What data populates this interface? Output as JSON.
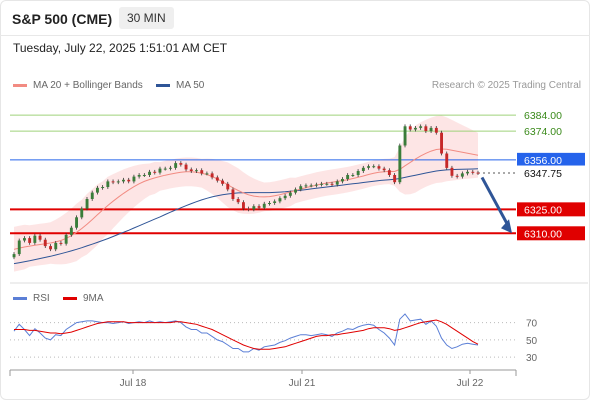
{
  "header": {
    "title": "S&P 500 (CME)",
    "timeframe": "30 MIN",
    "datetime": "Tuesday, July 22, 2025 1:51:01 AM CET"
  },
  "legend": {
    "ma20_label": "MA 20 + Bollinger Bands",
    "ma50_label": "MA 50",
    "credit": "Research © 2025 Trading Central",
    "rsi_label": "RSI",
    "ma9_label": "9MA"
  },
  "colors": {
    "ma20": "#f28b82",
    "ma50": "#2f5597",
    "band_fill": "#fde0e0",
    "resistance_green": "#9fd27a",
    "pivot_blue": "#2563eb",
    "support_red": "#e00000",
    "candle_up": "#3a7d3a",
    "candle_down": "#c62828",
    "rsi": "#5b7fd6",
    "rsi_ma": "#e00000",
    "arrow": "#2f5597"
  },
  "chart_data": {
    "type": "candlestick",
    "timeframe": "30 MIN",
    "instrument": "S&P 500 (CME)",
    "x_ticks": [
      "Jul 18",
      "Jul 21",
      "Jul 22"
    ],
    "y_range": [
      6282,
      6396
    ],
    "levels": [
      {
        "value": 6384.0,
        "label": "6384.00",
        "kind": "resistance"
      },
      {
        "value": 6374.0,
        "label": "6374.00",
        "kind": "resistance"
      },
      {
        "value": 6356.0,
        "label": "6356.00",
        "kind": "pivot"
      },
      {
        "value": 6347.75,
        "label": "6347.75",
        "kind": "last_price"
      },
      {
        "value": 6325.0,
        "label": "6325.00",
        "kind": "support"
      },
      {
        "value": 6310.0,
        "label": "6310.00",
        "kind": "support"
      }
    ],
    "close": [
      6297.0,
      6305.5,
      6307.0,
      6304.0,
      6308.5,
      6306.0,
      6302.0,
      6300.0,
      6304.0,
      6303.5,
      6309.0,
      6313.5,
      6320.0,
      6325.5,
      6331.5,
      6335.5,
      6338.5,
      6339.0,
      6342.5,
      6342.0,
      6342.5,
      6343.5,
      6342.5,
      6345.5,
      6346.5,
      6346.5,
      6348.5,
      6348.0,
      6350.5,
      6350.5,
      6351.0,
      6354.0,
      6353.0,
      6350.0,
      6349.0,
      6349.5,
      6347.5,
      6347.5,
      6345.0,
      6343.0,
      6341.0,
      6337.5,
      6331.5,
      6329.5,
      6325.5,
      6325.0,
      6327.0,
      6326.0,
      6328.5,
      6329.0,
      6330.0,
      6332.0,
      6333.5,
      6335.5,
      6337.5,
      6339.5,
      6340.0,
      6340.0,
      6340.5,
      6341.0,
      6341.0,
      6340.5,
      6342.5,
      6344.0,
      6346.5,
      6346.5,
      6349.0,
      6351.0,
      6352.0,
      6352.0,
      6350.5,
      6349.5,
      6346.5,
      6342.0,
      6365.0,
      6377.0,
      6375.0,
      6376.0,
      6377.0,
      6374.0,
      6376.0,
      6373.0,
      6360.0,
      6351.0,
      6346.0,
      6345.5,
      6347.5,
      6348.5,
      6348.0,
      6347.75
    ],
    "ma20": [
      6300.0,
      6300.7,
      6301.4,
      6302.0,
      6302.5,
      6303.0,
      6303.4,
      6303.9,
      6304.6,
      6305.5,
      6306.8,
      6308.5,
      6310.6,
      6313.0,
      6315.7,
      6318.6,
      6321.6,
      6324.5,
      6327.4,
      6330.1,
      6332.6,
      6335.0,
      6337.2,
      6339.2,
      6341.0,
      6342.5,
      6343.7,
      6344.7,
      6345.6,
      6346.4,
      6347.1,
      6347.7,
      6348.2,
      6348.5,
      6348.5,
      6348.2,
      6347.6,
      6346.8,
      6345.6,
      6344.1,
      6342.3,
      6340.4,
      6338.5,
      6336.8,
      6335.3,
      6334.1,
      6333.3,
      6332.9,
      6332.8,
      6333.0,
      6333.5,
      6334.2,
      6335.0,
      6335.9,
      6336.8,
      6337.7,
      6338.6,
      6339.4,
      6340.2,
      6340.9,
      6341.5,
      6342.0,
      6342.5,
      6343.0,
      6343.6,
      6344.3,
      6345.1,
      6345.9,
      6346.8,
      6347.6,
      6348.2,
      6348.6,
      6348.8,
      6348.7,
      6350.0,
      6352.3,
      6354.4,
      6356.5,
      6358.5,
      6360.1,
      6361.5,
      6362.5,
      6362.8,
      6362.6,
      6362.0,
      6361.4,
      6360.8,
      6360.2,
      6359.5,
      6358.9
    ],
    "ma50": [
      6291.0,
      6291.6,
      6292.2,
      6292.8,
      6293.5,
      6294.2,
      6294.9,
      6295.6,
      6296.4,
      6297.2,
      6298.1,
      6299.0,
      6300.0,
      6301.0,
      6302.1,
      6303.2,
      6304.3,
      6305.5,
      6306.7,
      6308.0,
      6309.3,
      6310.6,
      6311.9,
      6313.3,
      6314.7,
      6316.1,
      6317.5,
      6318.9,
      6320.3,
      6321.8,
      6323.2,
      6324.6,
      6326.0,
      6327.3,
      6328.6,
      6329.8,
      6330.9,
      6331.9,
      6332.8,
      6333.5,
      6334.1,
      6334.6,
      6335.0,
      6335.3,
      6335.4,
      6335.5,
      6335.5,
      6335.5,
      6335.5,
      6335.5,
      6335.6,
      6335.8,
      6336.0,
      6336.3,
      6336.6,
      6337.0,
      6337.4,
      6337.8,
      6338.2,
      6338.6,
      6339.0,
      6339.4,
      6339.8,
      6340.2,
      6340.6,
      6341.0,
      6341.4,
      6341.8,
      6342.2,
      6342.6,
      6343.0,
      6343.3,
      6343.6,
      6343.8,
      6344.3,
      6345.0,
      6345.7,
      6346.4,
      6347.1,
      6347.8,
      6348.4,
      6349.0,
      6349.4,
      6349.7,
      6349.9,
      6350.0,
      6350.1,
      6350.2,
      6350.3,
      6350.4
    ],
    "bb_width": [
      14,
      14,
      14,
      13,
      13,
      13,
      13,
      13,
      14,
      15,
      16,
      17,
      18,
      18,
      19,
      19,
      19,
      18,
      18,
      17,
      16,
      15,
      14,
      13,
      12,
      11,
      10,
      10,
      9,
      9,
      9,
      9,
      9,
      9,
      9,
      9,
      9,
      10,
      11,
      12,
      13,
      14,
      14,
      14,
      13,
      12,
      11,
      10,
      9,
      9,
      9,
      9,
      9,
      9,
      8,
      8,
      8,
      8,
      8,
      8,
      8,
      8,
      8,
      8,
      8,
      8,
      8,
      8,
      8,
      8,
      8,
      8,
      8,
      9,
      14,
      18,
      20,
      21,
      21,
      21,
      21,
      21,
      21,
      20,
      19,
      18,
      17,
      16,
      15,
      14
    ],
    "rsi": {
      "ticks": [
        70,
        50,
        30
      ],
      "range": [
        22,
        80
      ],
      "values": [
        60,
        68,
        62,
        55,
        63,
        58,
        52,
        50,
        56,
        55,
        62,
        66,
        70,
        71,
        72,
        72,
        71,
        70,
        70,
        69,
        70,
        71,
        69,
        70,
        71,
        70,
        72,
        70,
        71,
        70,
        71,
        72,
        70,
        65,
        62,
        62,
        58,
        58,
        54,
        50,
        48,
        44,
        40,
        40,
        36,
        36,
        40,
        38,
        42,
        43,
        44,
        47,
        49,
        52,
        54,
        56,
        56,
        55,
        56,
        57,
        56,
        54,
        58,
        60,
        63,
        62,
        65,
        67,
        68,
        67,
        62,
        58,
        52,
        44,
        74,
        80,
        72,
        73,
        74,
        68,
        72,
        66,
        52,
        44,
        40,
        42,
        45,
        46,
        45,
        44
      ],
      "ma9": [
        62,
        62,
        62,
        61,
        61,
        60,
        59,
        58,
        58,
        57,
        58,
        59,
        61,
        63,
        65,
        67,
        69,
        70,
        71,
        71,
        71,
        71,
        70,
        70,
        70,
        70,
        70,
        70,
        70,
        70,
        70,
        71,
        71,
        70,
        69,
        68,
        66,
        64,
        62,
        59,
        56,
        53,
        50,
        47,
        44,
        42,
        40,
        39,
        39,
        39,
        40,
        41,
        42,
        44,
        46,
        48,
        50,
        52,
        54,
        55,
        55,
        56,
        56,
        57,
        58,
        59,
        60,
        61,
        63,
        64,
        64,
        64,
        63,
        61,
        62,
        64,
        66,
        68,
        70,
        71,
        72,
        73,
        71,
        68,
        64,
        60,
        56,
        52,
        48,
        45
      ]
    },
    "projection": {
      "from": 6345.0,
      "to": 6310.0
    }
  }
}
